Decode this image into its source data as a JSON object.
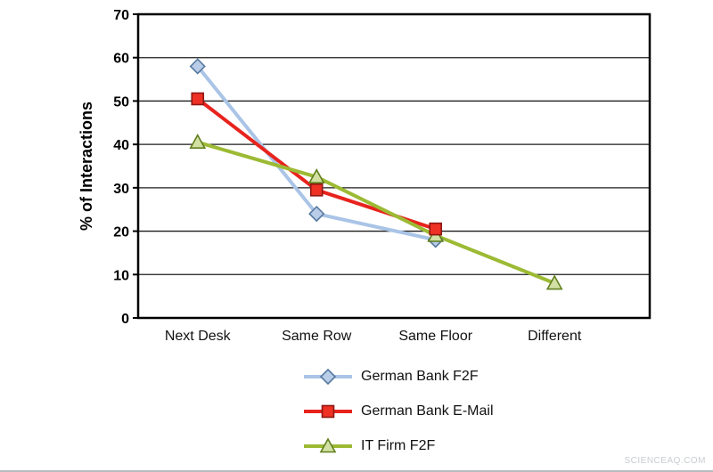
{
  "watermark": "SCIENCEAQ.COM",
  "chart_data": {
    "type": "line",
    "categories": [
      "Next Desk",
      "Same Row",
      "Same Floor",
      "Different"
    ],
    "title": "",
    "xlabel": "",
    "ylabel": "% of Interactions",
    "ylim": [
      0,
      70
    ],
    "ytick_step": 10,
    "grid": true,
    "legend_position": "bottom-center",
    "marker_draw_order": [
      0,
      2,
      1
    ],
    "series": [
      {
        "name": "German Bank F2F",
        "marker": "diamond",
        "line_color": "#a9c4e6",
        "marker_fill": "#b9cde9",
        "marker_stroke": "#56799f",
        "values": [
          58,
          24,
          18,
          null
        ]
      },
      {
        "name": "German Bank E-Mail",
        "marker": "square",
        "line_color": "#e8231d",
        "marker_fill": "#ee3124",
        "marker_stroke": "#8f1713",
        "values": [
          50.5,
          29.5,
          20.5,
          null
        ]
      },
      {
        "name": "IT Firm F2F",
        "marker": "triangle",
        "line_color": "#9cba33",
        "marker_fill": "#d2e0a4",
        "marker_stroke": "#61801f",
        "values": [
          40.5,
          32.5,
          19,
          8
        ]
      }
    ]
  }
}
